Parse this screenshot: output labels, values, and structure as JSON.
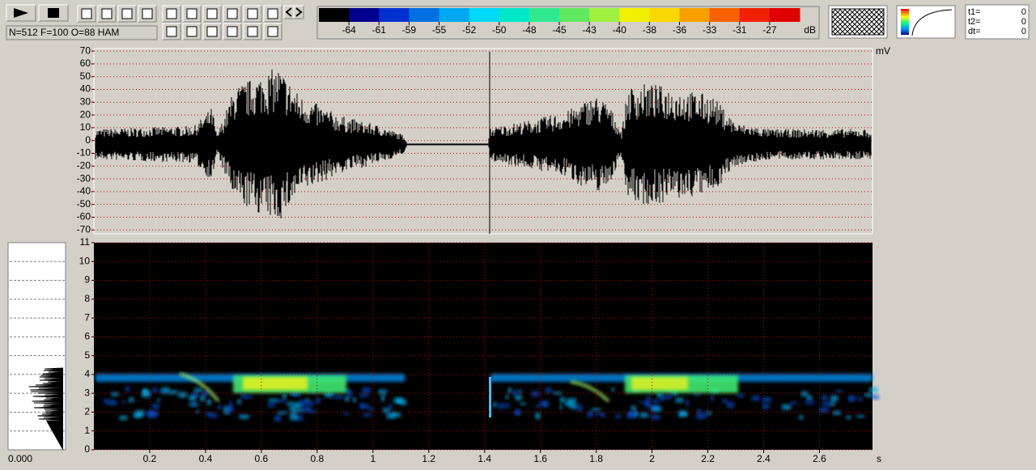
{
  "status": "N=512 F=100 O=88 HAM",
  "colorbar": {
    "colors": [
      "#000000",
      "#000090",
      "#0030d0",
      "#0070e0",
      "#00a8f0",
      "#00d8f8",
      "#00e8c8",
      "#30e890",
      "#60e860",
      "#a0f040",
      "#f0f000",
      "#f8d800",
      "#f8a000",
      "#f86000",
      "#f02000",
      "#e00000"
    ],
    "labels": [
      -64,
      -61,
      -59,
      -55,
      -52,
      -50,
      -48,
      -45,
      -43,
      -40,
      -38,
      -36,
      -33,
      -31,
      -27
    ],
    "unit": "dB"
  },
  "readouts": [
    {
      "label": "t1=",
      "value": 0
    },
    {
      "label": "t2=",
      "value": 0
    },
    {
      "label": "dt=",
      "value": 0
    }
  ],
  "oscillogram": {
    "unit": "mV",
    "ylim": [
      -73,
      72
    ],
    "yticks": [
      70,
      60,
      50,
      40,
      30,
      20,
      10,
      0,
      -10,
      -20,
      -30,
      -40,
      -50,
      -60,
      -70
    ]
  },
  "spectrogram": {
    "ylim": [
      0,
      11
    ],
    "yticks": [
      0,
      1,
      2,
      3,
      4,
      5,
      6,
      7,
      8,
      9,
      10,
      11
    ],
    "xlim": [
      0,
      2.79
    ],
    "xticks": [
      0.2,
      0.4,
      0.6,
      0.8,
      1,
      1.2,
      1.4,
      1.6,
      1.8,
      2,
      2.2,
      2.4,
      2.6
    ],
    "x_unit": "s"
  },
  "section_value": "0.000"
}
